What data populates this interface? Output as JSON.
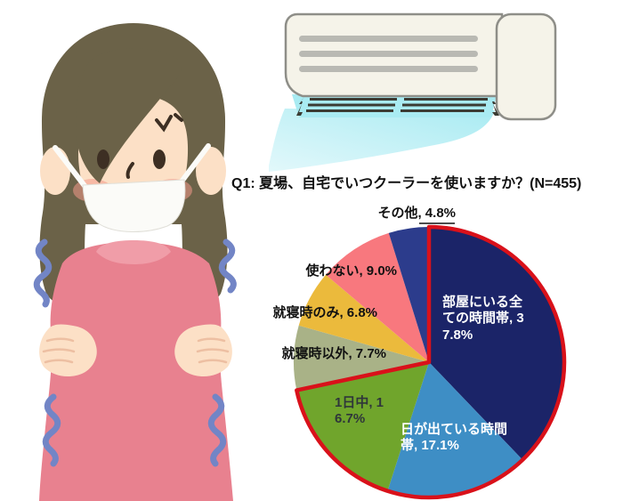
{
  "chart_data": {
    "type": "pie",
    "title": "Q1: 夏場、自宅でいつクーラーを使いますか？(N=455)",
    "sample_size_text": "N=455",
    "categories": [
      "部屋にいる全ての時間帯",
      "日が出ている時間帯",
      "1日中",
      "就寝時以外",
      "就寝時のみ",
      "使わない",
      "その他"
    ],
    "values": [
      37.8,
      17.1,
      16.7,
      7.7,
      6.8,
      9.0,
      4.8
    ],
    "start_angle_deg": -90,
    "direction": "clockwise",
    "legend": "none",
    "slices": [
      {
        "label": "部屋にいる全ての時間帯",
        "pct": "37.8%",
        "value": 37.8,
        "color": "#1B2468",
        "display": "部屋にいる全ての時間帯, 37.8%"
      },
      {
        "label": "日が出ている時間帯",
        "pct": "17.1%",
        "value": 17.1,
        "color": "#3E8EC5",
        "display": "日が出ている時間帯, 17.1%"
      },
      {
        "label": "1日中",
        "pct": "16.7%",
        "value": 16.7,
        "color": "#70A52C",
        "display": "1日中, 16.7%"
      },
      {
        "label": "就寝時以外",
        "pct": "7.7%",
        "value": 7.7,
        "color": "#A9B287",
        "display": "就寝時以外, 7.7%"
      },
      {
        "label": "就寝時のみ",
        "pct": "6.8%",
        "value": 6.8,
        "color": "#EBBA3C",
        "display": "就寝時のみ, 6.8%"
      },
      {
        "label": "使わない",
        "pct": "9.0%",
        "value": 9.0,
        "color": "#F8787E",
        "display": "使わない, 9.0%"
      },
      {
        "label": "その他",
        "pct": "4.8%",
        "value": 4.8,
        "color": "#2C3C8C",
        "display": "その他, 4.8%"
      }
    ],
    "highlight": {
      "outlined_slices": [
        0,
        1,
        2
      ],
      "outline_color": "#D9111A",
      "outline_width": 4.5
    }
  },
  "colors": {
    "hair": "#6B6248",
    "skin": "#FCE0C6",
    "blush": "#F2998A",
    "mask": "#FBFBF8",
    "sweater": "#E8818F",
    "collar": "#F09DA8",
    "shiver": "#7285C6",
    "ac_body": "#F5F3E9",
    "ac_outline": "#8E8E88",
    "ac_stripe": "#B9B9B3",
    "ac_air": "#A9EBF2",
    "ac_slat": "#3C3C34"
  }
}
